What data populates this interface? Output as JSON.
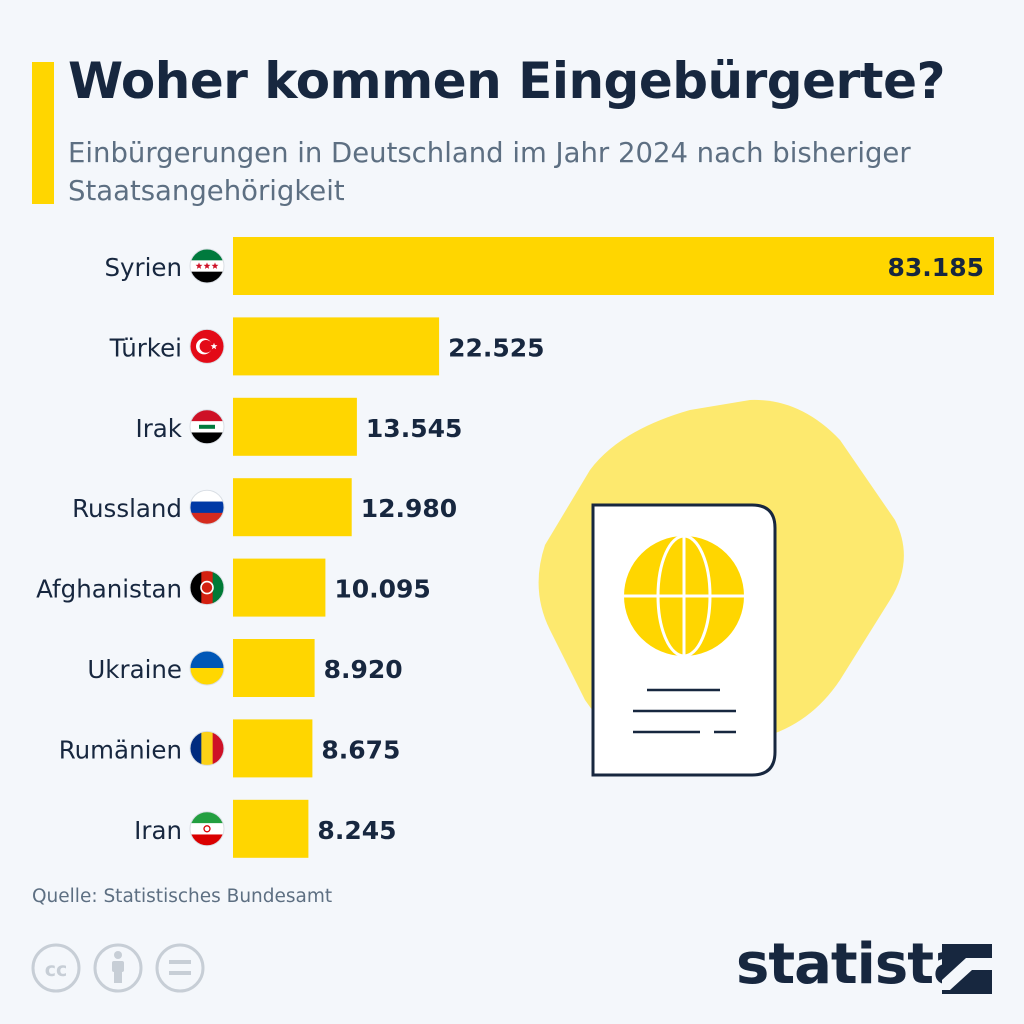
{
  "header": {
    "title": "Woher kommen Eingebürgerte?",
    "subtitle": "Einbürgerungen in Deutschland im Jahr 2024 nach bisheriger Staatsangehörigkeit"
  },
  "chart_data": {
    "type": "bar",
    "orientation": "horizontal",
    "categories": [
      "Syrien",
      "Türkei",
      "Irak",
      "Russland",
      "Afghanistan",
      "Ukraine",
      "Rumänien",
      "Iran"
    ],
    "values": [
      83185,
      22525,
      13545,
      12980,
      10095,
      8920,
      8675,
      8245
    ],
    "value_labels": [
      "83.185",
      "22.525",
      "13.545",
      "12.980",
      "10.095",
      "8.920",
      "8.675",
      "8.245"
    ],
    "xlim": [
      0,
      83185
    ],
    "grid": false,
    "bar_color": "#ffd600",
    "flag_icons": [
      "syria-flag-icon",
      "turkey-flag-icon",
      "iraq-flag-icon",
      "russia-flag-icon",
      "afghanistan-flag-icon",
      "ukraine-flag-icon",
      "romania-flag-icon",
      "iran-flag-icon"
    ]
  },
  "footer": {
    "source": "Quelle: Statistisches Bundesamt",
    "brand": "statista",
    "license_icons": [
      "cc-icon",
      "attribution-icon",
      "no-derivatives-icon"
    ]
  },
  "colors": {
    "accent": "#ffd600",
    "text_dark": "#17273f",
    "text_muted": "#5d6f82",
    "background": "#f4f7fb"
  }
}
